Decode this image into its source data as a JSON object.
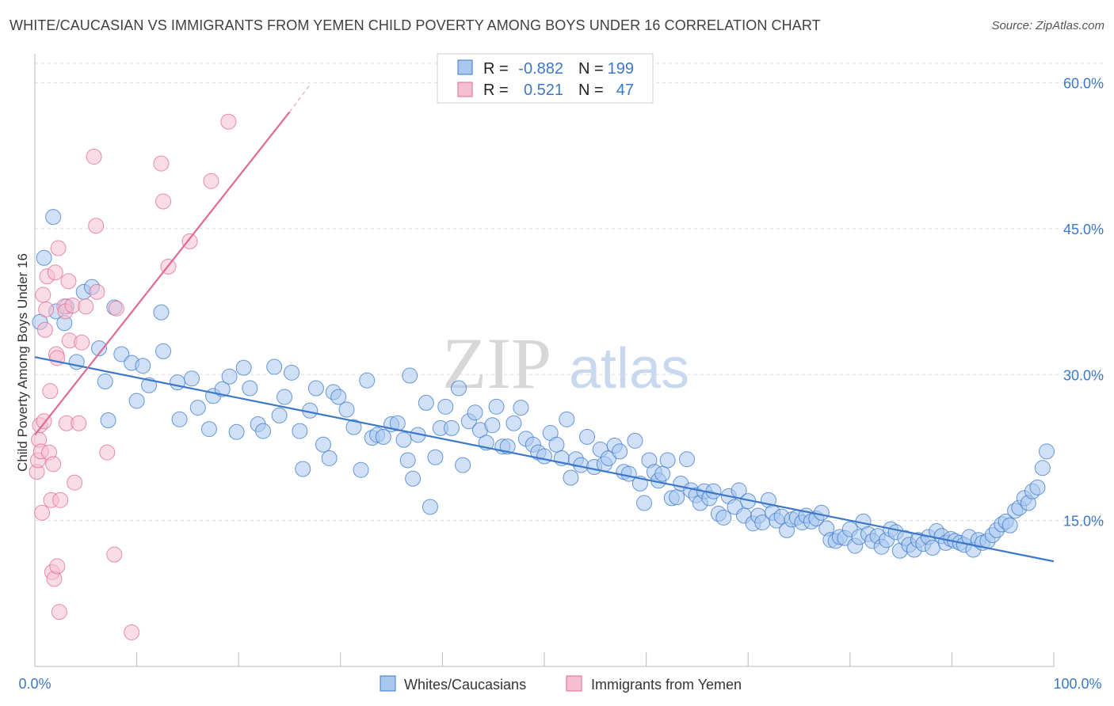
{
  "title": "WHITE/CAUCASIAN VS IMMIGRANTS FROM YEMEN CHILD POVERTY AMONG BOYS UNDER 16 CORRELATION CHART",
  "source": "Source: ZipAtlas.com",
  "watermark": {
    "zip": "ZIP",
    "atlas": "atlas"
  },
  "colors": {
    "blue": "#3b78c9",
    "blue_fill": "#a9c8f0",
    "pink": "#e06a94",
    "pink_fill": "#f6bfd1"
  },
  "stats": {
    "r_label": "R =",
    "n_label": "N =",
    "series": [
      {
        "r": "-0.882",
        "n": "199"
      },
      {
        "r": "0.521",
        "n": "47"
      }
    ]
  },
  "chart_data": {
    "type": "scatter",
    "xlabel": "",
    "ylabel": "Child Poverty Among Boys Under 16",
    "xlim": [
      0,
      100
    ],
    "ylim": [
      0,
      62
    ],
    "x_tick_labels": [
      "0.0%",
      "100.0%"
    ],
    "y_ticks": [
      15,
      30,
      45,
      60
    ],
    "y_tick_labels": [
      "15.0%",
      "30.0%",
      "45.0%",
      "60.0%"
    ],
    "grid": true,
    "legend_position": "bottom",
    "series": [
      {
        "name": "Whites/Caucasians",
        "color": "#3b78c9",
        "trend": [
          [
            0,
            31.8
          ],
          [
            100,
            10.8
          ]
        ],
        "points": [
          [
            1.8,
            46.2
          ],
          [
            0.9,
            42.0
          ],
          [
            2.1,
            36.5
          ],
          [
            4.8,
            38.5
          ],
          [
            3.1,
            37.0
          ],
          [
            5.6,
            39.0
          ],
          [
            0.5,
            35.4
          ],
          [
            2.9,
            35.3
          ],
          [
            4.1,
            31.3
          ],
          [
            6.3,
            32.7
          ],
          [
            6.9,
            29.3
          ],
          [
            7.2,
            25.3
          ],
          [
            7.8,
            36.9
          ],
          [
            8.5,
            32.1
          ],
          [
            9.5,
            31.2
          ],
          [
            10.0,
            27.3
          ],
          [
            10.6,
            30.9
          ],
          [
            11.2,
            28.9
          ],
          [
            12.4,
            36.4
          ],
          [
            12.6,
            32.4
          ],
          [
            14.2,
            25.4
          ],
          [
            14.0,
            29.2
          ],
          [
            15.4,
            29.6
          ],
          [
            16.0,
            26.6
          ],
          [
            17.1,
            24.4
          ],
          [
            17.5,
            27.8
          ],
          [
            18.4,
            28.5
          ],
          [
            19.1,
            29.8
          ],
          [
            19.8,
            24.1
          ],
          [
            20.5,
            30.7
          ],
          [
            21.1,
            28.6
          ],
          [
            21.9,
            24.9
          ],
          [
            22.4,
            24.2
          ],
          [
            23.5,
            30.8
          ],
          [
            24.0,
            25.8
          ],
          [
            24.5,
            27.7
          ],
          [
            25.2,
            30.2
          ],
          [
            26.0,
            24.2
          ],
          [
            26.3,
            20.3
          ],
          [
            27.0,
            26.3
          ],
          [
            27.6,
            28.6
          ],
          [
            28.3,
            22.8
          ],
          [
            28.9,
            21.4
          ],
          [
            29.3,
            28.2
          ],
          [
            29.8,
            27.7
          ],
          [
            30.6,
            26.4
          ],
          [
            31.3,
            24.6
          ],
          [
            32.0,
            20.2
          ],
          [
            32.6,
            29.4
          ],
          [
            33.1,
            23.5
          ],
          [
            33.6,
            23.8
          ],
          [
            34.2,
            23.6
          ],
          [
            35.0,
            24.9
          ],
          [
            35.6,
            25.0
          ],
          [
            36.2,
            23.3
          ],
          [
            36.6,
            21.2
          ],
          [
            37.1,
            19.3
          ],
          [
            37.6,
            23.8
          ],
          [
            38.4,
            27.1
          ],
          [
            38.8,
            16.4
          ],
          [
            39.3,
            21.5
          ],
          [
            39.8,
            24.5
          ],
          [
            40.3,
            26.7
          ],
          [
            40.9,
            24.5
          ],
          [
            41.6,
            28.6
          ],
          [
            42.0,
            20.7
          ],
          [
            42.6,
            25.2
          ],
          [
            43.2,
            26.1
          ],
          [
            43.7,
            24.3
          ],
          [
            44.3,
            23.0
          ],
          [
            44.9,
            24.8
          ],
          [
            45.3,
            26.7
          ],
          [
            45.9,
            22.6
          ],
          [
            46.4,
            22.6
          ],
          [
            47.0,
            25.0
          ],
          [
            47.7,
            26.6
          ],
          [
            48.2,
            23.4
          ],
          [
            48.9,
            22.8
          ],
          [
            49.4,
            22.0
          ],
          [
            50.0,
            21.6
          ],
          [
            50.6,
            24.0
          ],
          [
            51.2,
            22.8
          ],
          [
            51.7,
            21.4
          ],
          [
            52.2,
            25.4
          ],
          [
            52.6,
            19.4
          ],
          [
            53.1,
            21.3
          ],
          [
            53.6,
            20.7
          ],
          [
            54.2,
            23.6
          ],
          [
            54.9,
            20.5
          ],
          [
            55.5,
            22.3
          ],
          [
            55.9,
            20.8
          ],
          [
            56.3,
            21.4
          ],
          [
            56.9,
            22.7
          ],
          [
            57.4,
            22.1
          ],
          [
            57.8,
            20.0
          ],
          [
            58.3,
            19.8
          ],
          [
            58.9,
            23.2
          ],
          [
            59.4,
            18.8
          ],
          [
            59.8,
            16.8
          ],
          [
            60.3,
            21.2
          ],
          [
            60.8,
            20.0
          ],
          [
            61.2,
            19.1
          ],
          [
            61.6,
            19.8
          ],
          [
            62.1,
            21.2
          ],
          [
            62.5,
            17.3
          ],
          [
            63.0,
            17.4
          ],
          [
            63.4,
            18.8
          ],
          [
            64.0,
            21.3
          ],
          [
            64.4,
            18.1
          ],
          [
            64.9,
            17.6
          ],
          [
            65.3,
            16.8
          ],
          [
            65.7,
            18.0
          ],
          [
            66.2,
            17.3
          ],
          [
            66.6,
            18.0
          ],
          [
            67.1,
            15.7
          ],
          [
            67.6,
            15.3
          ],
          [
            68.1,
            17.5
          ],
          [
            68.7,
            16.4
          ],
          [
            69.1,
            18.1
          ],
          [
            69.6,
            15.5
          ],
          [
            70.0,
            17.0
          ],
          [
            70.5,
            14.7
          ],
          [
            71.0,
            15.5
          ],
          [
            71.4,
            14.8
          ],
          [
            72.0,
            17.1
          ],
          [
            72.4,
            15.8
          ],
          [
            72.8,
            15.0
          ],
          [
            73.3,
            15.4
          ],
          [
            73.8,
            14.0
          ],
          [
            74.3,
            15.1
          ],
          [
            74.8,
            15.3
          ],
          [
            75.3,
            14.8
          ],
          [
            75.7,
            15.5
          ],
          [
            76.2,
            14.9
          ],
          [
            76.7,
            15.2
          ],
          [
            77.2,
            15.8
          ],
          [
            77.7,
            14.2
          ],
          [
            78.1,
            13.0
          ],
          [
            78.6,
            12.9
          ],
          [
            79.0,
            13.3
          ],
          [
            79.5,
            13.2
          ],
          [
            80.0,
            14.1
          ],
          [
            80.5,
            12.4
          ],
          [
            80.9,
            13.3
          ],
          [
            81.3,
            14.9
          ],
          [
            81.8,
            13.6
          ],
          [
            82.2,
            12.9
          ],
          [
            82.7,
            13.4
          ],
          [
            83.1,
            12.3
          ],
          [
            83.6,
            13.0
          ],
          [
            84.0,
            14.1
          ],
          [
            84.5,
            13.8
          ],
          [
            84.9,
            11.9
          ],
          [
            85.4,
            13.2
          ],
          [
            85.8,
            12.5
          ],
          [
            86.3,
            12.0
          ],
          [
            86.7,
            13.0
          ],
          [
            87.2,
            12.6
          ],
          [
            87.7,
            13.3
          ],
          [
            88.1,
            12.2
          ],
          [
            88.5,
            13.9
          ],
          [
            89.0,
            13.4
          ],
          [
            89.4,
            12.7
          ],
          [
            89.9,
            13.1
          ],
          [
            90.3,
            12.9
          ],
          [
            90.8,
            12.7
          ],
          [
            91.2,
            12.5
          ],
          [
            91.7,
            13.3
          ],
          [
            92.1,
            12.0
          ],
          [
            92.6,
            13.0
          ],
          [
            93.0,
            12.7
          ],
          [
            93.5,
            12.9
          ],
          [
            94.0,
            13.5
          ],
          [
            94.4,
            14.0
          ],
          [
            94.9,
            14.6
          ],
          [
            95.3,
            14.9
          ],
          [
            95.7,
            14.5
          ],
          [
            96.2,
            16.0
          ],
          [
            96.6,
            16.3
          ],
          [
            97.1,
            17.3
          ],
          [
            97.5,
            16.8
          ],
          [
            97.9,
            18.0
          ],
          [
            98.4,
            18.4
          ],
          [
            98.9,
            20.4
          ],
          [
            99.3,
            22.1
          ],
          [
            36.8,
            29.9
          ]
        ]
      },
      {
        "name": "Immigrants from Yemen",
        "color": "#e06a94",
        "trend": [
          [
            0,
            23.8
          ],
          [
            25,
            57.0
          ]
        ],
        "trend_extension": [
          [
            25,
            57.0
          ],
          [
            27,
            59.8
          ]
        ],
        "points": [
          [
            0.2,
            20.0
          ],
          [
            0.3,
            21.2
          ],
          [
            0.4,
            23.3
          ],
          [
            0.5,
            24.8
          ],
          [
            0.6,
            22.1
          ],
          [
            0.7,
            15.8
          ],
          [
            0.8,
            38.2
          ],
          [
            0.9,
            25.2
          ],
          [
            1.0,
            34.6
          ],
          [
            1.1,
            36.7
          ],
          [
            1.2,
            40.1
          ],
          [
            1.4,
            22.0
          ],
          [
            1.5,
            28.3
          ],
          [
            1.6,
            17.1
          ],
          [
            1.7,
            9.7
          ],
          [
            1.8,
            20.8
          ],
          [
            1.9,
            9.0
          ],
          [
            2.0,
            40.5
          ],
          [
            2.1,
            32.1
          ],
          [
            2.2,
            31.7
          ],
          [
            2.2,
            10.3
          ],
          [
            2.3,
            43.0
          ],
          [
            2.4,
            5.6
          ],
          [
            2.5,
            17.1
          ],
          [
            2.9,
            37.0
          ],
          [
            3.0,
            36.5
          ],
          [
            3.1,
            25.0
          ],
          [
            3.3,
            39.6
          ],
          [
            3.4,
            33.5
          ],
          [
            3.7,
            37.1
          ],
          [
            3.9,
            18.9
          ],
          [
            4.3,
            25.0
          ],
          [
            4.6,
            33.3
          ],
          [
            5.0,
            37.0
          ],
          [
            5.8,
            52.4
          ],
          [
            6.0,
            45.3
          ],
          [
            6.1,
            38.5
          ],
          [
            7.1,
            22.0
          ],
          [
            7.8,
            11.5
          ],
          [
            8.0,
            36.8
          ],
          [
            9.5,
            3.5
          ],
          [
            12.4,
            51.7
          ],
          [
            12.6,
            47.8
          ],
          [
            13.1,
            41.1
          ],
          [
            15.2,
            43.7
          ],
          [
            17.3,
            49.9
          ],
          [
            19.0,
            56.0
          ]
        ]
      }
    ]
  }
}
